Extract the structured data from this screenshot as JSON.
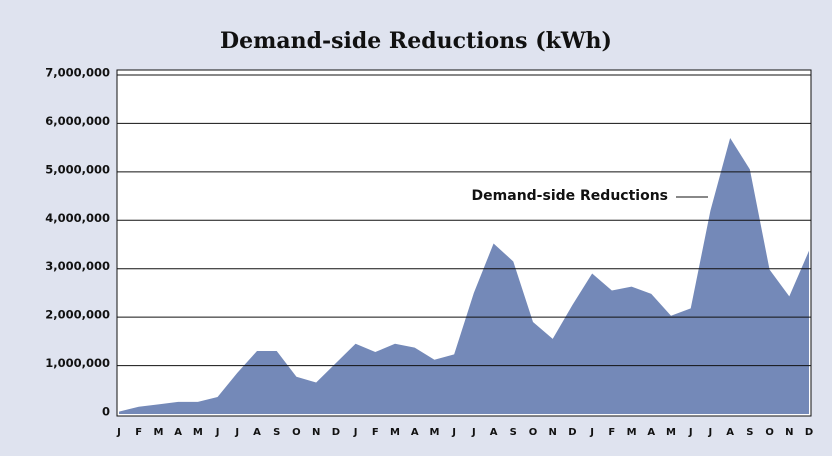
{
  "chart_data": {
    "type": "area",
    "title": "Demand-side Reductions (kWh)",
    "categories": [
      "J",
      "F",
      "M",
      "A",
      "M",
      "J",
      "J",
      "A",
      "S",
      "O",
      "N",
      "D",
      "J",
      "F",
      "M",
      "A",
      "M",
      "J",
      "J",
      "A",
      "S",
      "O",
      "N",
      "D",
      "J",
      "F",
      "M",
      "A",
      "M",
      "J",
      "J",
      "A",
      "S",
      "O",
      "N",
      "D"
    ],
    "series": [
      {
        "name": "Demand-side Reductions",
        "color": "#7489b8",
        "values": [
          50000,
          150000,
          200000,
          250000,
          250000,
          350000,
          850000,
          1300000,
          1300000,
          770000,
          650000,
          1050000,
          1450000,
          1280000,
          1450000,
          1370000,
          1120000,
          1230000,
          2500000,
          3520000,
          3150000,
          1900000,
          1550000,
          2250000,
          2900000,
          2550000,
          2630000,
          2480000,
          2030000,
          2180000,
          4200000,
          5700000,
          5050000,
          2980000,
          2430000,
          3370000
        ]
      }
    ],
    "ylim": [
      0,
      7000000
    ],
    "yticks": [
      0,
      {
        "value": 1000000,
        "label": "1,000,000"
      },
      {
        "value": 2000000,
        "label": "2,000,000"
      },
      {
        "value": 3000000,
        "label": "3,000,000"
      },
      {
        "value": 4000000,
        "label": "4,000,000"
      },
      {
        "value": 5000000,
        "label": "5,000,000"
      },
      {
        "value": 6000000,
        "label": "6,000,000"
      },
      {
        "value": 7000000,
        "label": "7,000,000"
      }
    ],
    "grid": true
  }
}
